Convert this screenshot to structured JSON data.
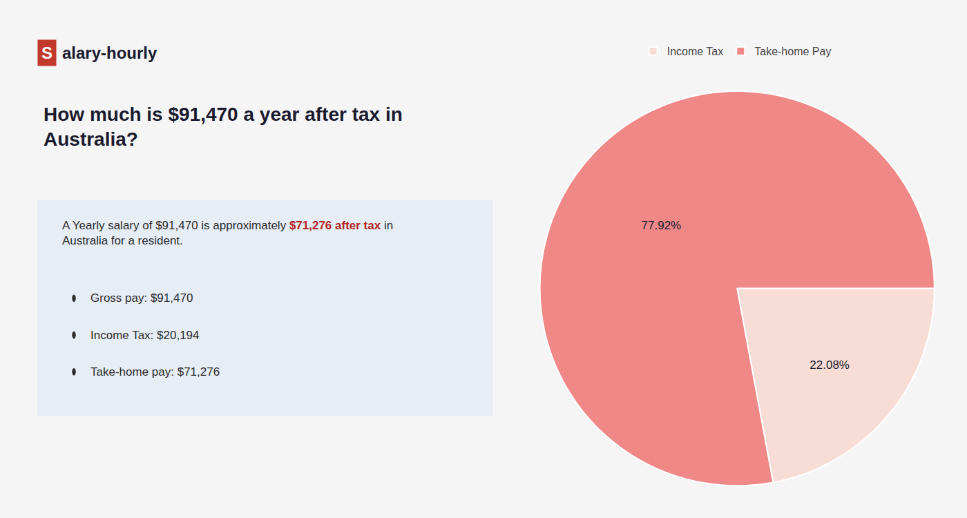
{
  "chart_data": {
    "type": "pie",
    "title": "How much is $91,470 a year after tax in\nAustralia?",
    "logo": {
      "mark": "S",
      "text": "alary-hourly",
      "color": "#c0392b"
    },
    "summary": [
      {
        "text": "A Yearly salary of $91,470 is approximately "
      },
      {
        "text": "$71,276 after tax",
        "color": "#b22222",
        "bold": true
      },
      {
        "text": " in"
      },
      {
        "text": "\nAustralia for a resident."
      }
    ],
    "bullets": [
      "Gross pay: $91,470",
      "Income Tax: $20,194",
      "Take-home pay: $71,276"
    ],
    "categories": [
      "Income Tax",
      "Take-home Pay"
    ],
    "values": [
      22.08,
      77.92
    ],
    "value_labels": [
      "22.08%",
      "77.92%"
    ],
    "colors": [
      "#f7ddd5",
      "#f08888"
    ],
    "data_labels": true,
    "legend": "top"
  }
}
